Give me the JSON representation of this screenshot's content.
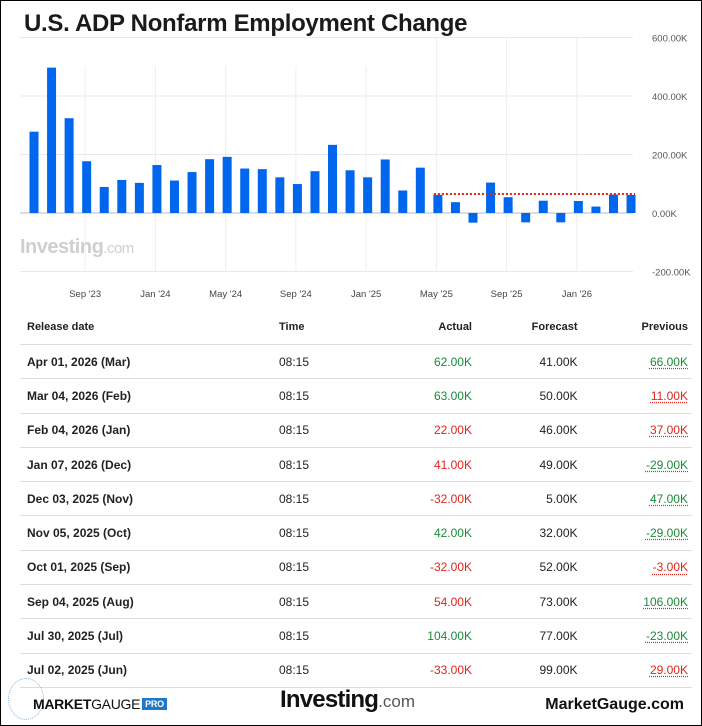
{
  "chart_data": {
    "type": "bar",
    "title": "U.S. ADP Nonfarm Employment Change",
    "categories": [
      "Jun 2023",
      "Jul 2023",
      "Aug 2023",
      "Sep 2023",
      "Oct 2023",
      "Nov 2023",
      "Dec 2023",
      "Jan 2024",
      "Feb 2024",
      "Mar 2024",
      "Apr 2024",
      "May 2024",
      "Jun 2024",
      "Jul 2024",
      "Aug 2024",
      "Sep 2024",
      "Oct 2024",
      "Nov 2024",
      "Dec 2024",
      "Jan 2025",
      "Feb 2025",
      "Mar 2025",
      "Apr 2025",
      "May 2025",
      "Jun 2025",
      "Jul 2025",
      "Aug 2025",
      "Sep 2025",
      "Oct 2025",
      "Nov 2025",
      "Dec 2025",
      "Jan 2026",
      "Feb 2026",
      "Mar 2026",
      "Apr 2026"
    ],
    "values": [
      278,
      497,
      324,
      177,
      89,
      113,
      103,
      164,
      111,
      140,
      184,
      192,
      152,
      150,
      122,
      99,
      143,
      233,
      146,
      122,
      183,
      77,
      155,
      62,
      37,
      -33,
      104,
      54,
      -32,
      42,
      -32,
      41,
      22,
      63,
      62
    ],
    "unit": "K",
    "ylim": [
      -200,
      600
    ],
    "yticks": [
      "600.00K",
      "400.00K",
      "200.00K",
      "0.00K",
      "-200.00K"
    ],
    "ytick_values": [
      600,
      400,
      200,
      0,
      -200
    ],
    "xticks": [
      "Sep '23",
      "Jan '24",
      "May '24",
      "Sep '24",
      "Jan '25",
      "May '25",
      "Sep '25",
      "Jan '26"
    ],
    "xtick_index": [
      3,
      7,
      11,
      15,
      19,
      23,
      27,
      31
    ],
    "reference_line": {
      "value": 65,
      "from_index": 23,
      "color": "#e0251b",
      "style": "dotted"
    },
    "bar_color": "#0066ee",
    "grid": true,
    "watermark": "Investing.com"
  },
  "table": {
    "headers": [
      "Release date",
      "Time",
      "Actual",
      "Forecast",
      "Previous"
    ],
    "rows": [
      {
        "date": "Apr 01, 2026 (Mar)",
        "time": "08:15",
        "actual": "62.00K",
        "actual_status": "pos",
        "forecast": "41.00K",
        "previous": "66.00K",
        "previous_status": "pos"
      },
      {
        "date": "Mar 04, 2026 (Feb)",
        "time": "08:15",
        "actual": "63.00K",
        "actual_status": "pos",
        "forecast": "50.00K",
        "previous": "11.00K",
        "previous_status": "neg"
      },
      {
        "date": "Feb 04, 2026 (Jan)",
        "time": "08:15",
        "actual": "22.00K",
        "actual_status": "neg",
        "forecast": "46.00K",
        "previous": "37.00K",
        "previous_status": "neg"
      },
      {
        "date": "Jan 07, 2026 (Dec)",
        "time": "08:15",
        "actual": "41.00K",
        "actual_status": "neg",
        "forecast": "49.00K",
        "previous": "-29.00K",
        "previous_status": "pos"
      },
      {
        "date": "Dec 03, 2025 (Nov)",
        "time": "08:15",
        "actual": "-32.00K",
        "actual_status": "neg",
        "forecast": "5.00K",
        "previous": "47.00K",
        "previous_status": "pos"
      },
      {
        "date": "Nov 05, 2025 (Oct)",
        "time": "08:15",
        "actual": "42.00K",
        "actual_status": "pos",
        "forecast": "32.00K",
        "previous": "-29.00K",
        "previous_status": "pos"
      },
      {
        "date": "Oct 01, 2025 (Sep)",
        "time": "08:15",
        "actual": "-32.00K",
        "actual_status": "neg",
        "forecast": "52.00K",
        "previous": "-3.00K",
        "previous_status": "neg"
      },
      {
        "date": "Sep 04, 2025 (Aug)",
        "time": "08:15",
        "actual": "54.00K",
        "actual_status": "neg",
        "forecast": "73.00K",
        "previous": "106.00K",
        "previous_status": "pos"
      },
      {
        "date": "Jul 30, 2025 (Jul)",
        "time": "08:15",
        "actual": "104.00K",
        "actual_status": "pos",
        "forecast": "77.00K",
        "previous": "-23.00K",
        "previous_status": "pos"
      },
      {
        "date": "Jul 02, 2025 (Jun)",
        "time": "08:15",
        "actual": "-33.00K",
        "actual_status": "neg",
        "forecast": "99.00K",
        "previous": "29.00K",
        "previous_status": "neg"
      }
    ]
  },
  "footer": {
    "logo_left_bold": "MARKET",
    "logo_left_thin": "GAUGE",
    "logo_left_badge": "PRO",
    "logo_center": "Investing",
    "logo_center_suffix": ".com",
    "site": "MarketGauge.com"
  }
}
